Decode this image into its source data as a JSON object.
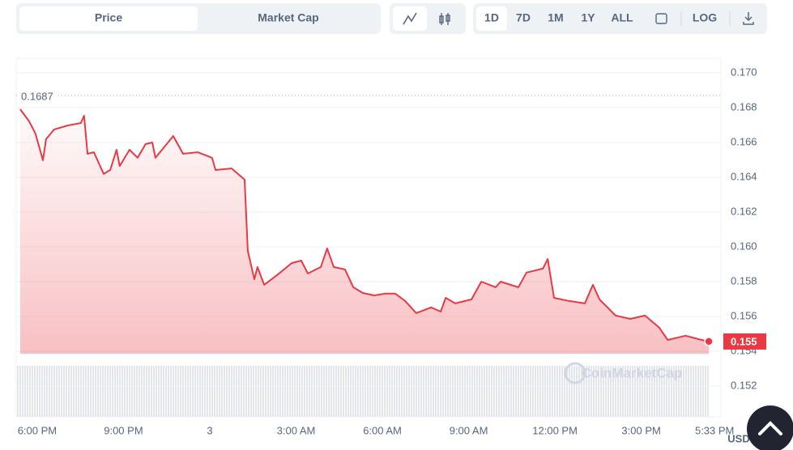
{
  "ui": {
    "tabs": [
      "Price",
      "Market Cap"
    ],
    "ranges": [
      "1D",
      "7D",
      "1M",
      "1Y",
      "ALL"
    ],
    "log": "LOG",
    "currency": "USD",
    "watermark": "CoinMarketCap"
  },
  "chart_data": {
    "type": "line",
    "color": "#ea3943",
    "x": [
      17.41,
      17.72,
      17.94,
      18.2,
      18.31,
      18.59,
      19.07,
      19.52,
      19.63,
      19.75,
      19.97,
      20.31,
      20.54,
      20.76,
      20.87,
      21.21,
      21.49,
      21.77,
      22.0,
      22.11,
      22.39,
      22.73,
      23.07,
      23.58,
      24.08,
      24.2,
      24.76,
      25.21,
      25.32,
      25.55,
      25.66,
      25.89,
      26.34,
      26.85,
      27.18,
      27.41,
      27.86,
      28.08,
      28.31,
      28.7,
      28.99,
      29.32,
      29.72,
      30.11,
      30.45,
      30.79,
      31.18,
      31.69,
      32.03,
      32.2,
      32.54,
      33.1,
      33.44,
      33.94,
      34.11,
      34.73,
      35.01,
      35.58,
      35.75,
      35.97,
      36.48,
      37.04,
      37.32,
      37.55,
      38.11,
      38.62,
      39.13,
      39.63,
      39.92,
      40.54,
      41.1,
      41.35
    ],
    "values": [
      0.16791,
      0.16721,
      0.16651,
      0.16498,
      0.16619,
      0.16675,
      0.16698,
      0.16712,
      0.16754,
      0.16535,
      0.16544,
      0.16419,
      0.16442,
      0.16558,
      0.16465,
      0.16558,
      0.16512,
      0.16591,
      0.166,
      0.16512,
      0.16568,
      0.16637,
      0.16535,
      0.16544,
      0.16512,
      0.16442,
      0.16451,
      0.16386,
      0.15977,
      0.15814,
      0.15884,
      0.15782,
      0.15838,
      0.15907,
      0.15921,
      0.15847,
      0.15884,
      0.15991,
      0.15884,
      0.1587,
      0.15768,
      0.15735,
      0.15721,
      0.15731,
      0.15731,
      0.15689,
      0.15619,
      0.15652,
      0.15628,
      0.15707,
      0.15675,
      0.15698,
      0.158,
      0.15768,
      0.158,
      0.15768,
      0.15852,
      0.15875,
      0.1593,
      0.15707,
      0.15689,
      0.15675,
      0.15782,
      0.15698,
      0.15605,
      0.15586,
      0.15605,
      0.15535,
      0.15465,
      0.15489,
      0.15465,
      0.15456
    ],
    "xlim": [
      17.27,
      41.77
    ],
    "xticks": [
      {
        "value": 18,
        "label": "6:00 PM"
      },
      {
        "value": 21,
        "label": "9:00 PM"
      },
      {
        "value": 24,
        "label": "3"
      },
      {
        "value": 27,
        "label": "3:00 AM"
      },
      {
        "value": 30,
        "label": "6:00 AM"
      },
      {
        "value": 33,
        "label": "9:00 AM"
      },
      {
        "value": 36,
        "label": "12:00 PM"
      },
      {
        "value": 39,
        "label": "3:00 PM"
      },
      {
        "value": 41.55,
        "label": "5:33 PM"
      }
    ],
    "ylim": [
      0.15023,
      0.17084
    ],
    "yticks": [
      {
        "value": 0.17,
        "label": "0.170"
      },
      0.168,
      0.166,
      0.164,
      0.162,
      {
        "value": 0.16,
        "label": "0.160"
      },
      0.158,
      0.156,
      0.154,
      0.152
    ],
    "reference_line": 0.1687,
    "current_price": {
      "value": 0.15456,
      "label": "0.155"
    },
    "grid": true
  }
}
